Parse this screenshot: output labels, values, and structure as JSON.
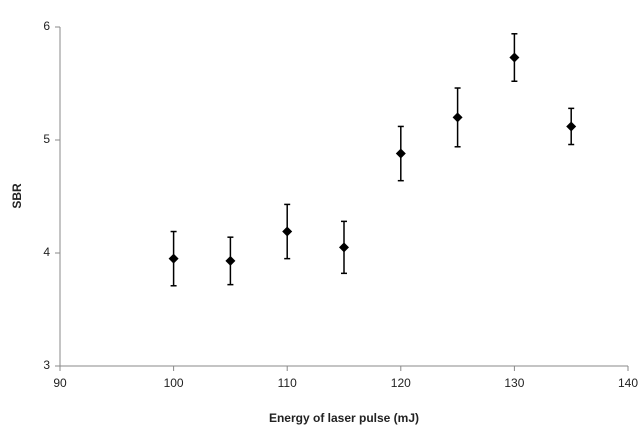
{
  "chart_data": {
    "type": "scatter",
    "x_label": "Energy of laser pulse (mJ)",
    "y_label": "SBR",
    "x": [
      100,
      105,
      110,
      115,
      120,
      125,
      130,
      135
    ],
    "values": [
      3.95,
      3.93,
      4.19,
      4.05,
      4.88,
      5.2,
      5.73,
      5.12
    ],
    "errors": [
      0.24,
      0.21,
      0.24,
      0.23,
      0.24,
      0.26,
      0.21,
      0.16
    ],
    "color": "#000000",
    "xlim": [
      90,
      140
    ],
    "xticks": [
      90,
      100,
      110,
      120,
      130,
      140
    ],
    "ylim": [
      3,
      6
    ],
    "yticks": [
      3,
      4,
      5,
      6
    ],
    "grid": false
  }
}
